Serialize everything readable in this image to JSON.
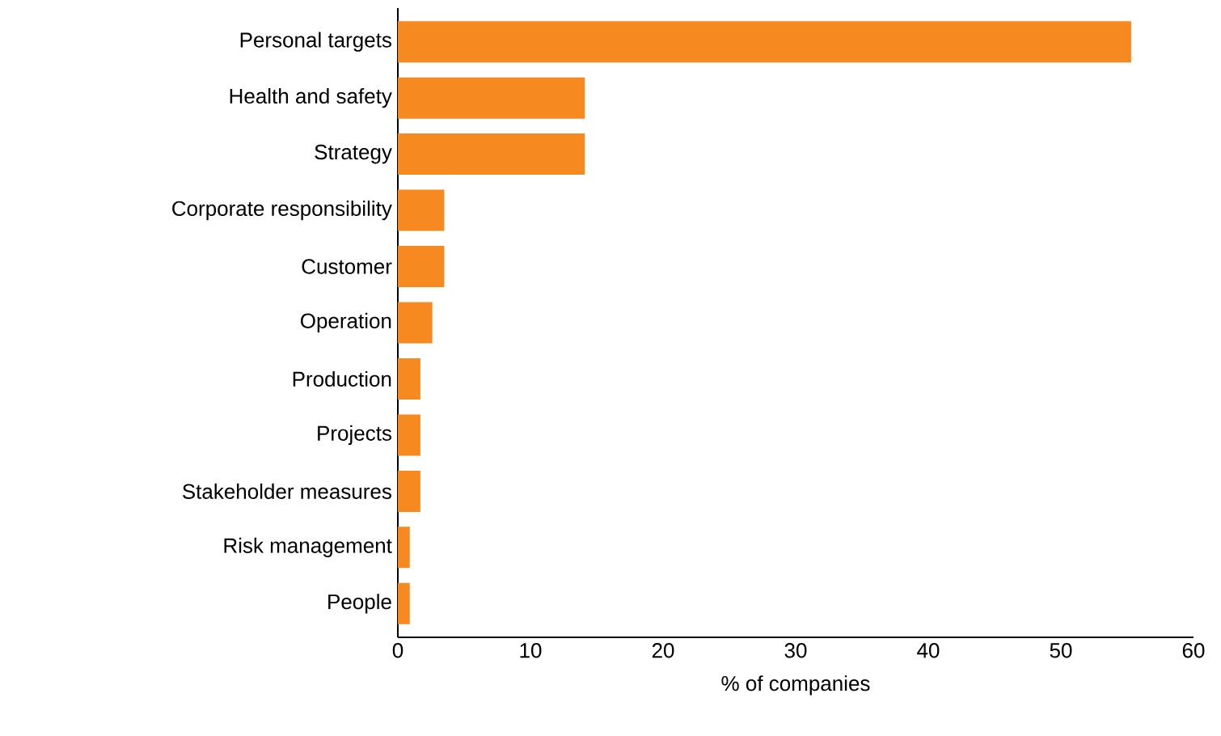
{
  "chart_data": {
    "type": "bar",
    "orientation": "horizontal",
    "xlabel": "% of companies",
    "categories": [
      "Personal targets",
      "Health and safety",
      "Strategy",
      "Corporate responsibility",
      "Customer",
      "Operation",
      "Production",
      "Projects",
      "Stakeholder measures",
      "Risk management",
      "People"
    ],
    "values": [
      55.3,
      14.1,
      14.1,
      3.5,
      3.5,
      2.6,
      1.7,
      1.7,
      1.7,
      0.9,
      0.9
    ],
    "color": "#f68a20",
    "xlim": [
      0,
      60
    ],
    "xticks": [
      0,
      10,
      20,
      30,
      40,
      50,
      60
    ],
    "grid": false
  }
}
